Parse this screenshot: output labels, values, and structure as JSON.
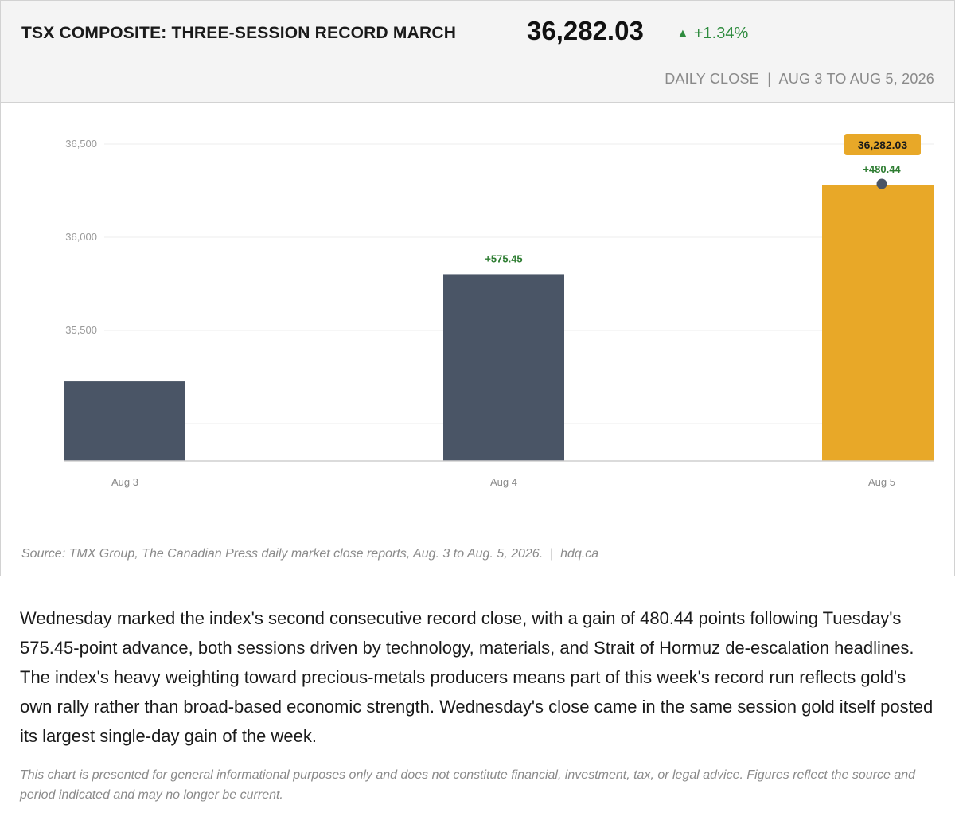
{
  "header": {
    "title": "TSX COMPOSITE: THREE-SESSION RECORD MARCH",
    "value": "36,282.03",
    "change_arrow": "▲",
    "change": "+1.34%",
    "subline": "DAILY CLOSE  |  AUG 3 TO AUG 5, 2026"
  },
  "chart_data": {
    "type": "bar",
    "categories": [
      "Aug 3",
      "Aug 4",
      "Aug 5"
    ],
    "values": [
      35226.14,
      35801.59,
      36282.03
    ],
    "bar_labels": [
      "",
      "+575.45",
      "+480.44"
    ],
    "highlight_label": "36,282.03",
    "highlight_index": 2,
    "y_ticks": [
      35000,
      35500,
      36000,
      36500
    ],
    "y_tick_labels": [
      "35,000",
      "35,500",
      "36,000",
      "36,500"
    ],
    "ylim": [
      34800,
      36500
    ],
    "grid": true,
    "colors": {
      "bar": "#4a5566",
      "highlight": "#e8a828",
      "positive": "#2e7d32",
      "marker": "#4a5566"
    }
  },
  "source": "Source: TMX Group, The Canadian Press daily market close reports, Aug. 3 to Aug. 5, 2026.  |  hdq.ca",
  "body_text": "Wednesday marked the index's second consecutive record close, with a gain of 480.44 points following Tuesday's 575.45-point advance, both sessions driven by technology, materials, and Strait of Hormuz de-escalation headlines. The index's heavy weighting toward precious-metals producers means part of this week's record run reflects gold's own rally rather than broad-based economic strength. Wednesday's close came in the same session gold itself posted its largest single-day gain of the week.",
  "disclaimer": "This chart is presented for general informational purposes only and does not constitute financial, investment, tax, or legal advice. Figures reflect the source and period indicated and may no longer be current."
}
